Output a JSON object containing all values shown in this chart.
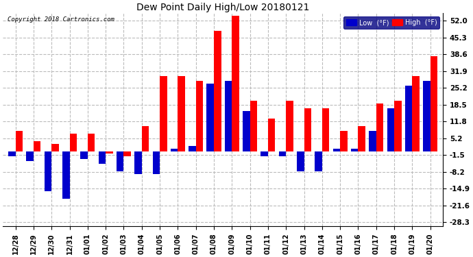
{
  "title": "Dew Point Daily High/Low 20180121",
  "copyright": "Copyright 2018 Cartronics.com",
  "labels": [
    "12/28",
    "12/29",
    "12/30",
    "12/31",
    "01/01",
    "01/02",
    "01/03",
    "01/04",
    "01/05",
    "01/06",
    "01/07",
    "01/08",
    "01/09",
    "01/10",
    "01/11",
    "01/12",
    "01/13",
    "01/14",
    "01/15",
    "01/16",
    "01/17",
    "01/18",
    "01/19",
    "01/20"
  ],
  "high": [
    8,
    4,
    3,
    7,
    7,
    -1,
    -2,
    10,
    30,
    30,
    28,
    48,
    54,
    20,
    13,
    20,
    17,
    17,
    8,
    10,
    19,
    20,
    30,
    38
  ],
  "low": [
    -2,
    -4,
    -16,
    -19,
    -3,
    -5,
    -8,
    -9,
    -9,
    1,
    2,
    27,
    28,
    16,
    -2,
    -2,
    -8,
    -8,
    1,
    1,
    8,
    17,
    26,
    28
  ],
  "high_color": "#ff0000",
  "low_color": "#0000cc",
  "bg_color": "#ffffff",
  "grid_color": "#bbbbbb",
  "yticks": [
    52.0,
    45.3,
    38.6,
    31.9,
    25.2,
    18.5,
    11.8,
    5.2,
    -1.5,
    -8.2,
    -14.9,
    -21.6,
    -28.3
  ],
  "ylim": [
    -30,
    55
  ],
  "bar_width": 0.4,
  "figsize": [
    6.9,
    3.75
  ],
  "dpi": 100
}
